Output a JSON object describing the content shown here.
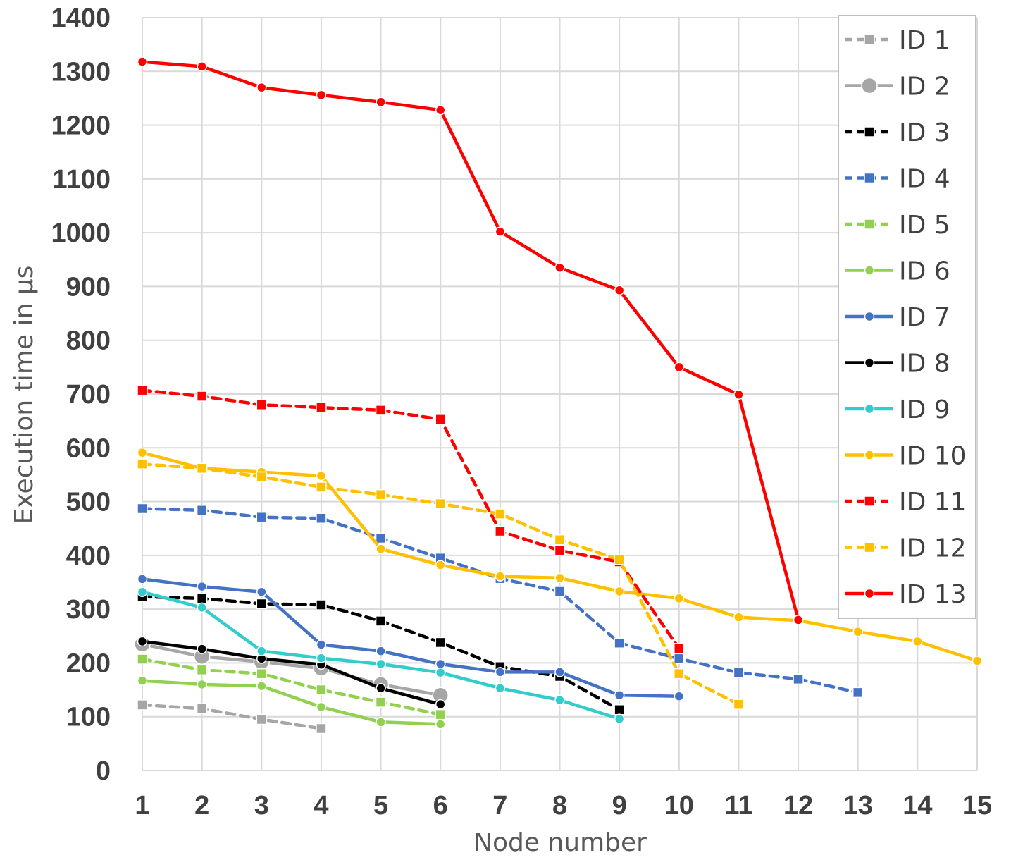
{
  "chart_data": {
    "type": "line",
    "title": "",
    "xlabel": "Node number",
    "ylabel": "Execution time in µs",
    "x_ticks": [
      1,
      2,
      3,
      4,
      5,
      6,
      7,
      8,
      9,
      10,
      11,
      12,
      13,
      14,
      15
    ],
    "y_ticks": [
      0,
      100,
      200,
      300,
      400,
      500,
      600,
      700,
      800,
      900,
      1000,
      1100,
      1200,
      1300,
      1400
    ],
    "xlim": [
      1,
      15
    ],
    "ylim": [
      0,
      1400
    ],
    "grid": true,
    "legend_position": "top-right",
    "series": [
      {
        "name": "ID 1",
        "color": "#a6a6a6",
        "dash": true,
        "marker": "square",
        "x": [
          1,
          2,
          3,
          4
        ],
        "values": [
          122,
          115,
          95,
          78
        ]
      },
      {
        "name": "ID 2",
        "color": "#a6a6a6",
        "dash": false,
        "marker": "circle-large",
        "x": [
          1,
          2,
          3,
          4,
          5,
          6
        ],
        "values": [
          235,
          212,
          202,
          190,
          160,
          140
        ]
      },
      {
        "name": "ID 3",
        "color": "#000000",
        "dash": true,
        "marker": "square",
        "x": [
          1,
          2,
          3,
          4,
          5,
          6,
          7,
          8,
          9
        ],
        "values": [
          323,
          320,
          310,
          308,
          278,
          238,
          193,
          175,
          113
        ]
      },
      {
        "name": "ID 4",
        "color": "#4472c4",
        "dash": true,
        "marker": "square",
        "x": [
          1,
          2,
          3,
          4,
          5,
          6,
          7,
          8,
          9,
          10,
          11,
          12,
          13
        ],
        "values": [
          487,
          484,
          471,
          469,
          432,
          395,
          357,
          333,
          237,
          208,
          182,
          170,
          145
        ]
      },
      {
        "name": "ID 5",
        "color": "#92d050",
        "dash": true,
        "marker": "square",
        "x": [
          1,
          2,
          3,
          4,
          5,
          6
        ],
        "values": [
          207,
          187,
          180,
          150,
          127,
          104
        ]
      },
      {
        "name": "ID 6",
        "color": "#92d050",
        "dash": false,
        "marker": "circle",
        "x": [
          1,
          2,
          3,
          4,
          5,
          6
        ],
        "values": [
          167,
          160,
          157,
          118,
          90,
          86
        ]
      },
      {
        "name": "ID 7",
        "color": "#4472c4",
        "dash": false,
        "marker": "circle",
        "x": [
          1,
          2,
          3,
          4,
          5,
          6,
          7,
          8,
          9,
          10
        ],
        "values": [
          356,
          342,
          332,
          234,
          222,
          198,
          183,
          183,
          140,
          138
        ]
      },
      {
        "name": "ID 8",
        "color": "#000000",
        "dash": false,
        "marker": "circle",
        "x": [
          1,
          2,
          3,
          4,
          5,
          6
        ],
        "values": [
          240,
          226,
          208,
          197,
          153,
          123
        ]
      },
      {
        "name": "ID 9",
        "color": "#33cccc",
        "dash": false,
        "marker": "circle",
        "x": [
          1,
          2,
          3,
          4,
          5,
          6,
          7,
          8,
          9
        ],
        "values": [
          332,
          303,
          222,
          209,
          198,
          182,
          153,
          131,
          96
        ]
      },
      {
        "name": "ID 10",
        "color": "#ffc000",
        "dash": false,
        "marker": "circle",
        "x": [
          1,
          2,
          3,
          4,
          5,
          6,
          7,
          8,
          9,
          10,
          11,
          12,
          13,
          14,
          15
        ],
        "values": [
          591,
          562,
          555,
          548,
          412,
          382,
          361,
          358,
          333,
          320,
          285,
          279,
          258,
          240,
          204
        ]
      },
      {
        "name": "ID 11",
        "color": "#ff0000",
        "dash": true,
        "marker": "square",
        "x": [
          1,
          2,
          3,
          4,
          5,
          6,
          7,
          8,
          9,
          10
        ],
        "values": [
          707,
          696,
          680,
          675,
          670,
          653,
          445,
          409,
          388,
          227
        ]
      },
      {
        "name": "ID 12",
        "color": "#ffc000",
        "dash": true,
        "marker": "square",
        "x": [
          1,
          2,
          3,
          4,
          5,
          6,
          7,
          8,
          9,
          10,
          11
        ],
        "values": [
          570,
          562,
          546,
          527,
          513,
          496,
          477,
          429,
          392,
          180,
          123
        ]
      },
      {
        "name": "ID 13",
        "color": "#ff0000",
        "dash": false,
        "marker": "circle",
        "x": [
          1,
          2,
          3,
          4,
          5,
          6,
          7,
          8,
          9,
          10,
          11,
          12
        ],
        "values": [
          1318,
          1309,
          1270,
          1256,
          1243,
          1228,
          1002,
          935,
          893,
          750,
          699,
          280
        ]
      }
    ]
  }
}
